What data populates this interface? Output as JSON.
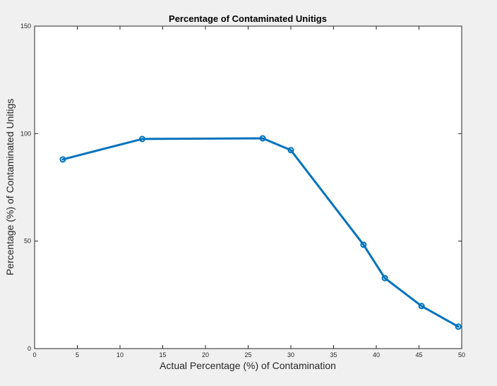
{
  "chart_data": {
    "type": "line",
    "title": "Percentage of Contaminated Unitigs",
    "xlabel": "Actual Percentage (%) of Contamination",
    "ylabel": "Percentage (%) of Contaminated Unitigs",
    "xlim": [
      0,
      50
    ],
    "ylim": [
      0,
      150
    ],
    "xticks": [
      0,
      5,
      10,
      15,
      20,
      25,
      30,
      35,
      40,
      45,
      50
    ],
    "yticks": [
      0,
      50,
      100,
      150
    ],
    "grid": false,
    "series": [
      {
        "color": "#0072bd",
        "marker": "circle",
        "x": [
          3.3,
          12.6,
          26.7,
          30.0,
          38.5,
          41.0,
          45.3,
          49.6
        ],
        "y": [
          88,
          97.5,
          97.8,
          92.3,
          48.3,
          32.8,
          19.8,
          10.2
        ]
      }
    ]
  }
}
